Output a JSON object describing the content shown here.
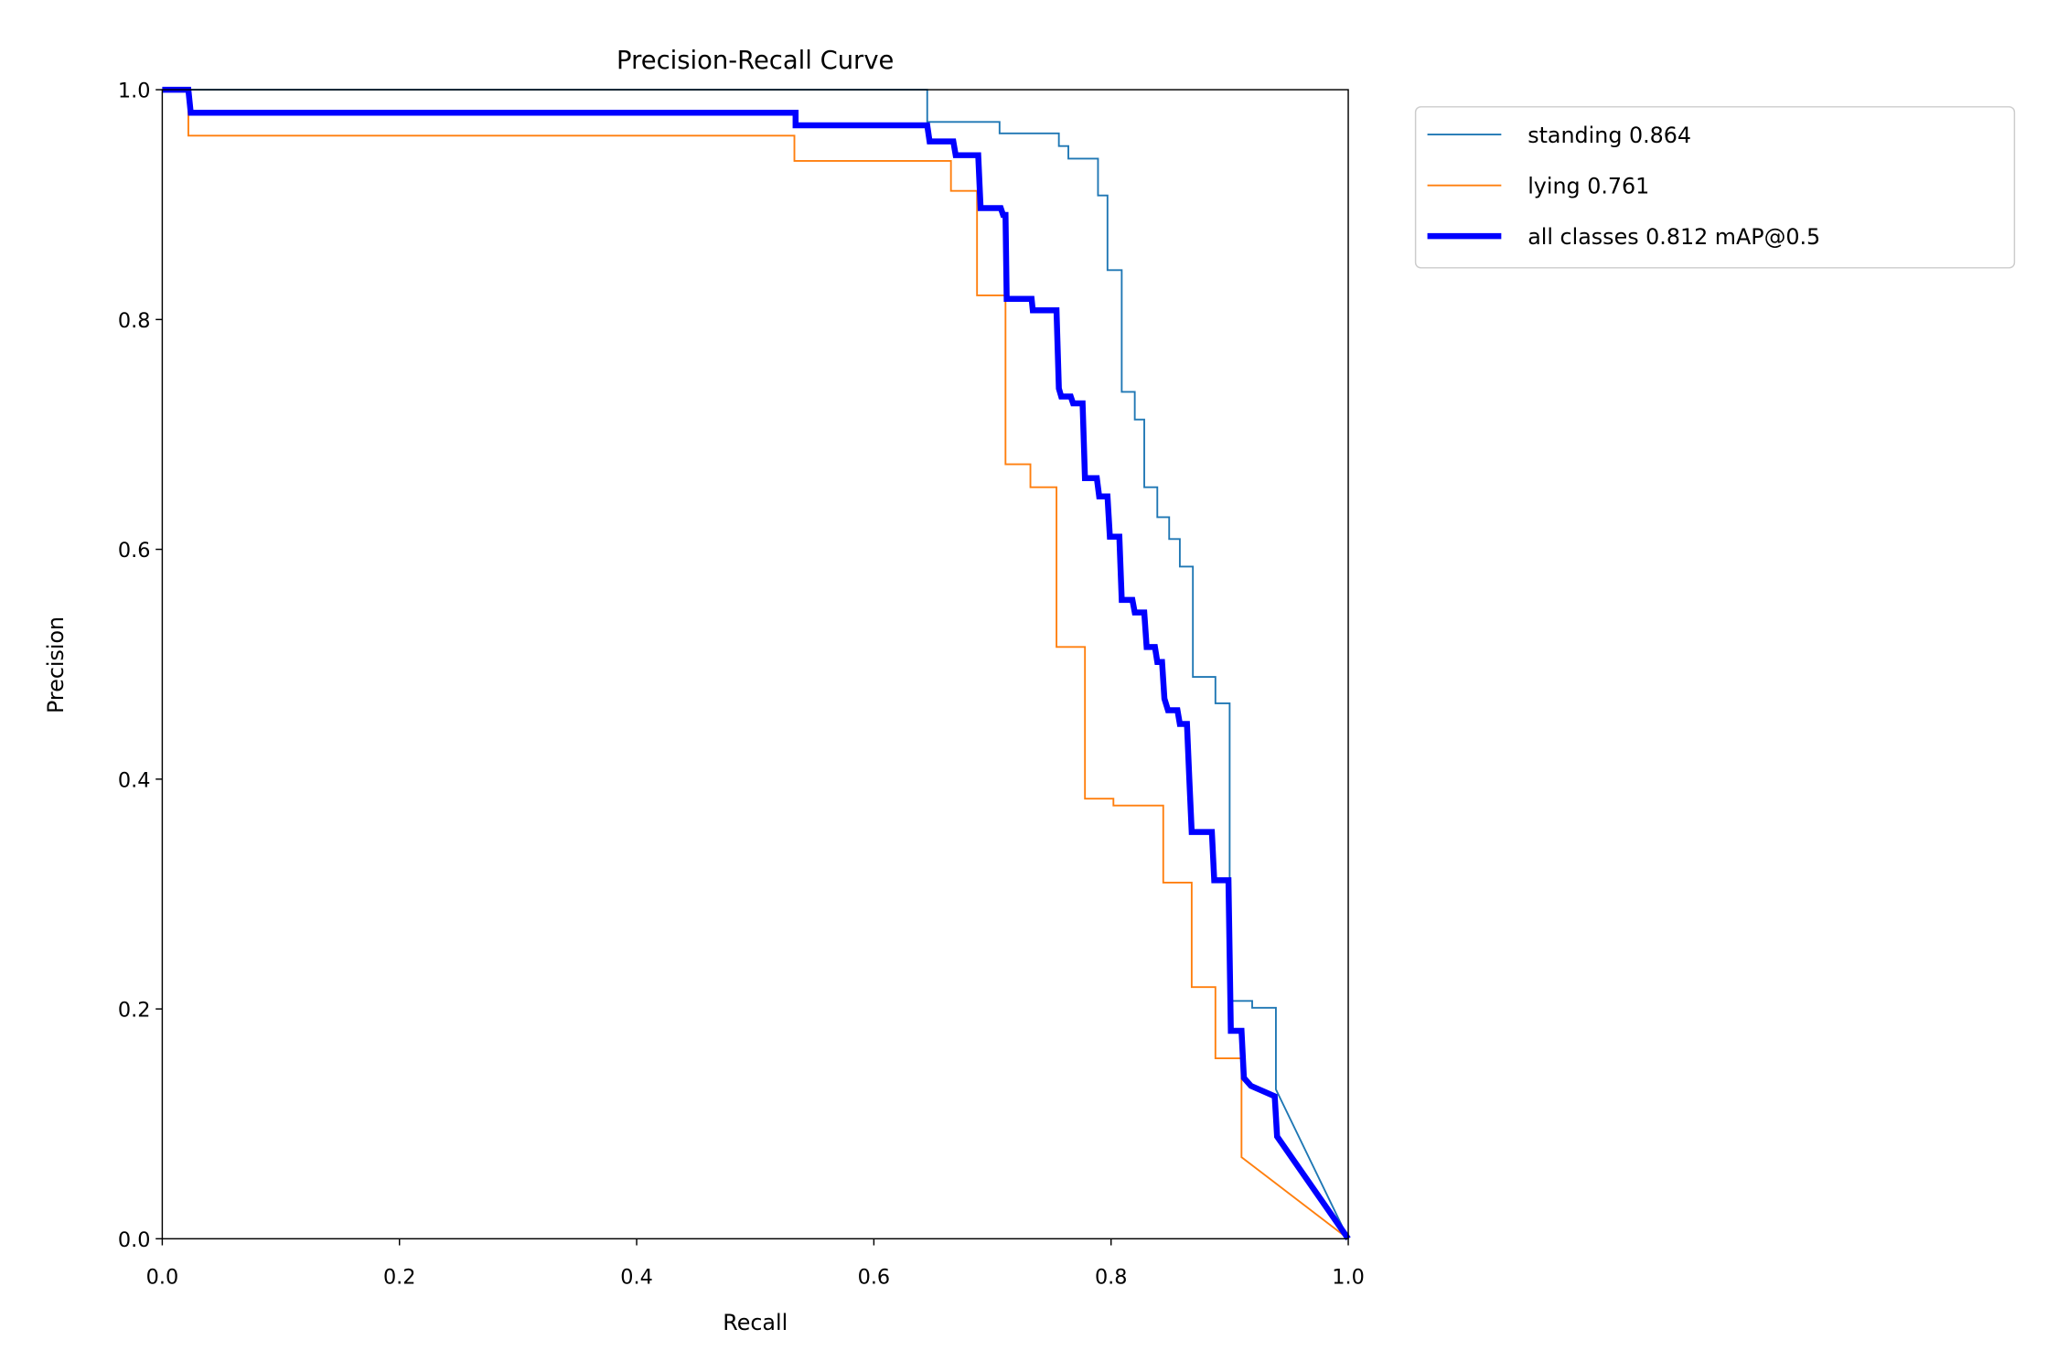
{
  "chart_data": {
    "type": "line",
    "title": "Precision-Recall Curve",
    "xlabel": "Recall",
    "ylabel": "Precision",
    "xlim": [
      0,
      1
    ],
    "ylim": [
      0,
      1
    ],
    "grid": false,
    "legend_position": "outside-top-right",
    "xticks": [
      "0.0",
      "0.2",
      "0.4",
      "0.6",
      "0.8",
      "1.0"
    ],
    "yticks": [
      "0.0",
      "0.2",
      "0.4",
      "0.6",
      "0.8",
      "1.0"
    ],
    "series": [
      {
        "name": "standing 0.864",
        "color": "#1f77b4",
        "width": "thin",
        "points": [
          [
            0,
            1
          ],
          [
            0.645,
            1
          ],
          [
            0.645,
            0.972
          ],
          [
            0.706,
            0.972
          ],
          [
            0.706,
            0.962
          ],
          [
            0.756,
            0.962
          ],
          [
            0.756,
            0.951
          ],
          [
            0.764,
            0.951
          ],
          [
            0.764,
            0.94
          ],
          [
            0.789,
            0.94
          ],
          [
            0.789,
            0.908
          ],
          [
            0.797,
            0.908
          ],
          [
            0.797,
            0.843
          ],
          [
            0.809,
            0.843
          ],
          [
            0.809,
            0.737
          ],
          [
            0.82,
            0.737
          ],
          [
            0.82,
            0.713
          ],
          [
            0.828,
            0.713
          ],
          [
            0.828,
            0.654
          ],
          [
            0.839,
            0.654
          ],
          [
            0.839,
            0.628
          ],
          [
            0.849,
            0.628
          ],
          [
            0.849,
            0.609
          ],
          [
            0.858,
            0.609
          ],
          [
            0.858,
            0.585
          ],
          [
            0.869,
            0.585
          ],
          [
            0.869,
            0.489
          ],
          [
            0.888,
            0.489
          ],
          [
            0.888,
            0.466
          ],
          [
            0.9,
            0.466
          ],
          [
            0.9,
            0.207
          ],
          [
            0.919,
            0.207
          ],
          [
            0.919,
            0.201
          ],
          [
            0.939,
            0.201
          ],
          [
            0.939,
            0.13
          ],
          [
            1,
            0
          ]
        ]
      },
      {
        "name": "lying 0.761",
        "color": "#ff7f0e",
        "width": "thin",
        "points": [
          [
            0,
            1
          ],
          [
            0.022,
            1
          ],
          [
            0.022,
            0.96
          ],
          [
            0.533,
            0.96
          ],
          [
            0.533,
            0.938
          ],
          [
            0.665,
            0.938
          ],
          [
            0.665,
            0.912
          ],
          [
            0.687,
            0.912
          ],
          [
            0.687,
            0.821
          ],
          [
            0.711,
            0.821
          ],
          [
            0.711,
            0.674
          ],
          [
            0.732,
            0.674
          ],
          [
            0.732,
            0.654
          ],
          [
            0.754,
            0.654
          ],
          [
            0.754,
            0.515
          ],
          [
            0.778,
            0.515
          ],
          [
            0.778,
            0.383
          ],
          [
            0.802,
            0.383
          ],
          [
            0.802,
            0.377
          ],
          [
            0.844,
            0.377
          ],
          [
            0.844,
            0.31
          ],
          [
            0.868,
            0.31
          ],
          [
            0.868,
            0.219
          ],
          [
            0.888,
            0.219
          ],
          [
            0.888,
            0.157
          ],
          [
            0.91,
            0.157
          ],
          [
            0.91,
            0.071
          ],
          [
            1,
            0
          ]
        ]
      },
      {
        "name": "all classes 0.812 mAP@0.5",
        "color": "#0000ff",
        "width": "thick",
        "points": [
          [
            0,
            1
          ],
          [
            0.022,
            1
          ],
          [
            0.024,
            0.98
          ],
          [
            0.534,
            0.98
          ],
          [
            0.534,
            0.969
          ],
          [
            0.645,
            0.969
          ],
          [
            0.647,
            0.955
          ],
          [
            0.667,
            0.955
          ],
          [
            0.669,
            0.943
          ],
          [
            0.688,
            0.943
          ],
          [
            0.69,
            0.897
          ],
          [
            0.707,
            0.897
          ],
          [
            0.709,
            0.891
          ],
          [
            0.711,
            0.891
          ],
          [
            0.712,
            0.818
          ],
          [
            0.733,
            0.818
          ],
          [
            0.734,
            0.808
          ],
          [
            0.754,
            0.808
          ],
          [
            0.756,
            0.74
          ],
          [
            0.758,
            0.733
          ],
          [
            0.766,
            0.733
          ],
          [
            0.768,
            0.727
          ],
          [
            0.776,
            0.727
          ],
          [
            0.778,
            0.662
          ],
          [
            0.788,
            0.662
          ],
          [
            0.79,
            0.646
          ],
          [
            0.797,
            0.646
          ],
          [
            0.799,
            0.611
          ],
          [
            0.807,
            0.611
          ],
          [
            0.809,
            0.556
          ],
          [
            0.818,
            0.556
          ],
          [
            0.82,
            0.545
          ],
          [
            0.828,
            0.545
          ],
          [
            0.83,
            0.515
          ],
          [
            0.837,
            0.515
          ],
          [
            0.839,
            0.502
          ],
          [
            0.843,
            0.502
          ],
          [
            0.845,
            0.47
          ],
          [
            0.848,
            0.46
          ],
          [
            0.856,
            0.46
          ],
          [
            0.858,
            0.448
          ],
          [
            0.864,
            0.448
          ],
          [
            0.866,
            0.4
          ],
          [
            0.868,
            0.354
          ],
          [
            0.885,
            0.354
          ],
          [
            0.887,
            0.312
          ],
          [
            0.899,
            0.312
          ],
          [
            0.901,
            0.181
          ],
          [
            0.91,
            0.181
          ],
          [
            0.912,
            0.14
          ],
          [
            0.918,
            0.133
          ],
          [
            0.938,
            0.124
          ],
          [
            0.94,
            0.089
          ],
          [
            1,
            0
          ]
        ]
      }
    ]
  }
}
